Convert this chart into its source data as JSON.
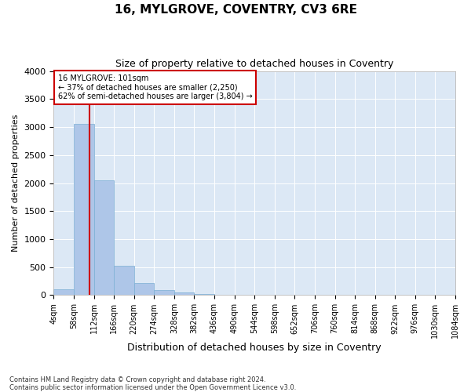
{
  "title": "16, MYLGROVE, COVENTRY, CV3 6RE",
  "subtitle": "Size of property relative to detached houses in Coventry",
  "xlabel": "Distribution of detached houses by size in Coventry",
  "ylabel": "Number of detached properties",
  "footer_line1": "Contains HM Land Registry data © Crown copyright and database right 2024.",
  "footer_line2": "Contains public sector information licensed under the Open Government Licence v3.0.",
  "annotation_line1": "16 MYLGROVE: 101sqm",
  "annotation_line2": "← 37% of detached houses are smaller (2,250)",
  "annotation_line3": "62% of semi-detached houses are larger (3,804) →",
  "property_size": 101,
  "bin_edges": [
    4,
    58,
    112,
    166,
    220,
    274,
    328,
    382,
    436,
    490,
    544,
    598,
    652,
    706,
    760,
    814,
    868,
    922,
    976,
    1030,
    1084
  ],
  "bar_values": [
    100,
    3050,
    2050,
    530,
    220,
    95,
    50,
    15,
    5,
    2,
    1,
    0,
    0,
    0,
    0,
    0,
    0,
    0,
    0,
    0
  ],
  "bar_color": "#aec6e8",
  "bar_edge_color": "#7bafd4",
  "vline_color": "#cc0000",
  "annotation_box_color": "#cc0000",
  "background_color": "#dce8f5",
  "ylim": [
    0,
    4000
  ],
  "yticks": [
    0,
    500,
    1000,
    1500,
    2000,
    2500,
    3000,
    3500,
    4000
  ]
}
